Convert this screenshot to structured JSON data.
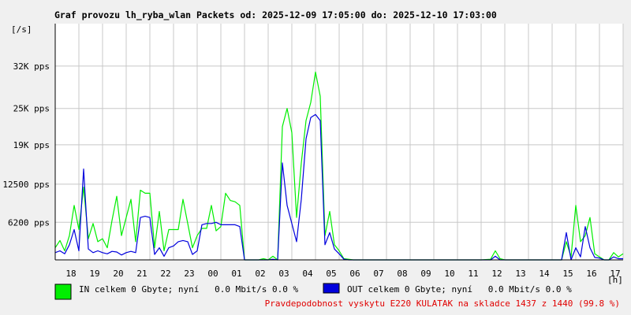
{
  "chart_data": {
    "type": "line",
    "title": "Graf provozu lh_ryba_wlan Packets od: 2025-12-09 17:05:00 do: 2025-12-10 17:03:00",
    "ylabel": "[/s]",
    "xlabel": "[h]",
    "ylim": [
      0,
      39000
    ],
    "grid": true,
    "y_ticks": [
      {
        "value": 6200,
        "label": "6200 pps"
      },
      {
        "value": 12500,
        "label": "12500 pps"
      },
      {
        "value": 19000,
        "label": "19K pps"
      },
      {
        "value": 25000,
        "label": "25K pps"
      },
      {
        "value": 32000,
        "label": "32K pps"
      }
    ],
    "x_ticks": [
      {
        "hours": 1.0,
        "label": "18"
      },
      {
        "hours": 2.0,
        "label": "19"
      },
      {
        "hours": 3.0,
        "label": "20"
      },
      {
        "hours": 4.0,
        "label": "21"
      },
      {
        "hours": 5.0,
        "label": "22"
      },
      {
        "hours": 6.0,
        "label": "23"
      },
      {
        "hours": 7.0,
        "label": "00"
      },
      {
        "hours": 8.0,
        "label": "01"
      },
      {
        "hours": 9.0,
        "label": "02"
      },
      {
        "hours": 10.0,
        "label": "03"
      },
      {
        "hours": 11.0,
        "label": "04"
      },
      {
        "hours": 12.0,
        "label": "05"
      },
      {
        "hours": 13.0,
        "label": "06"
      },
      {
        "hours": 14.0,
        "label": "07"
      },
      {
        "hours": 15.0,
        "label": "08"
      },
      {
        "hours": 16.0,
        "label": "09"
      },
      {
        "hours": 17.0,
        "label": "10"
      },
      {
        "hours": 18.0,
        "label": "11"
      },
      {
        "hours": 19.0,
        "label": "12"
      },
      {
        "hours": 20.0,
        "label": "13"
      },
      {
        "hours": 21.0,
        "label": "14"
      },
      {
        "hours": 22.0,
        "label": "15"
      },
      {
        "hours": 23.0,
        "label": "16"
      },
      {
        "hours": 24.0,
        "label": "17"
      }
    ],
    "series": [
      {
        "name": "IN",
        "color": "#00ee00",
        "x": [
          0,
          0.2,
          0.4,
          0.6,
          0.8,
          1.0,
          1.2,
          1.4,
          1.6,
          1.8,
          2.0,
          2.2,
          2.4,
          2.6,
          2.8,
          3.0,
          3.2,
          3.4,
          3.6,
          3.8,
          4.0,
          4.2,
          4.4,
          4.6,
          4.8,
          5.0,
          5.2,
          5.4,
          5.6,
          5.8,
          6.0,
          6.2,
          6.4,
          6.6,
          6.8,
          7.0,
          7.2,
          7.4,
          7.6,
          7.8,
          8.0,
          8.2,
          8.4,
          8.6,
          8.8,
          9.0,
          9.2,
          9.4,
          9.6,
          9.8,
          10.0,
          10.2,
          10.4,
          10.6,
          10.8,
          11.0,
          11.2,
          11.4,
          11.6,
          11.8,
          12.0,
          12.2,
          12.4,
          12.6,
          12.8,
          13.0,
          14.0,
          15.0,
          16.0,
          17.0,
          18.0,
          18.4,
          18.6,
          18.8,
          19.0,
          20.0,
          21.0,
          21.4,
          21.6,
          21.8,
          22.0,
          22.2,
          22.4,
          22.6,
          22.8,
          23.0,
          23.2,
          23.4,
          23.6,
          23.8,
          24.0
        ],
        "values": [
          2000,
          3200,
          1500,
          4000,
          9000,
          5000,
          12000,
          3500,
          6000,
          3000,
          3500,
          2000,
          6500,
          10500,
          4000,
          7000,
          10000,
          3000,
          11500,
          11000,
          11000,
          2000,
          8000,
          1500,
          5000,
          5000,
          5000,
          10000,
          6000,
          2000,
          4000,
          5200,
          5200,
          9000,
          4800,
          5500,
          11000,
          9800,
          9600,
          9000,
          0,
          0,
          0,
          0,
          200,
          0,
          600,
          0,
          22000,
          25000,
          21000,
          7000,
          16000,
          23000,
          26000,
          31000,
          27000,
          4000,
          8000,
          2500,
          1500,
          200,
          100,
          0,
          0,
          0,
          0,
          0,
          0,
          0,
          0,
          100,
          1500,
          200,
          0,
          0,
          0,
          0,
          3000,
          500,
          9000,
          3000,
          4000,
          7000,
          1000,
          500,
          0,
          0,
          1200,
          500,
          1000
        ]
      },
      {
        "name": "OUT",
        "color": "#0000dd",
        "x": [
          0,
          0.2,
          0.4,
          0.6,
          0.8,
          1.0,
          1.2,
          1.4,
          1.6,
          1.8,
          2.0,
          2.2,
          2.4,
          2.6,
          2.8,
          3.0,
          3.2,
          3.4,
          3.6,
          3.8,
          4.0,
          4.2,
          4.4,
          4.6,
          4.8,
          5.0,
          5.2,
          5.4,
          5.6,
          5.8,
          6.0,
          6.2,
          6.4,
          6.6,
          6.8,
          7.0,
          7.2,
          7.4,
          7.6,
          7.8,
          8.0,
          8.2,
          8.4,
          8.6,
          8.8,
          9.0,
          9.2,
          9.4,
          9.6,
          9.8,
          10.0,
          10.2,
          10.4,
          10.6,
          10.8,
          11.0,
          11.2,
          11.4,
          11.6,
          11.8,
          12.0,
          12.2,
          12.4,
          12.6,
          12.8,
          13.0,
          14.0,
          15.0,
          16.0,
          17.0,
          18.0,
          18.4,
          18.6,
          18.8,
          19.0,
          20.0,
          21.0,
          21.4,
          21.6,
          21.8,
          22.0,
          22.2,
          22.4,
          22.6,
          22.8,
          23.0,
          23.2,
          23.4,
          23.6,
          23.8,
          24.0
        ],
        "values": [
          1200,
          1500,
          1000,
          2500,
          5000,
          1500,
          15000,
          1800,
          1200,
          1500,
          1200,
          1000,
          1400,
          1300,
          800,
          1200,
          1400,
          1200,
          7000,
          7200,
          7000,
          900,
          2000,
          600,
          2000,
          2300,
          3000,
          3200,
          3000,
          900,
          1500,
          5800,
          6000,
          6000,
          6200,
          5800,
          5800,
          5800,
          5800,
          5500,
          0,
          0,
          0,
          0,
          0,
          0,
          100,
          0,
          16000,
          9000,
          6000,
          3000,
          10000,
          20000,
          23500,
          24000,
          23000,
          2500,
          4500,
          1800,
          1000,
          100,
          0,
          0,
          0,
          0,
          0,
          0,
          0,
          0,
          0,
          0,
          600,
          0,
          0,
          0,
          0,
          0,
          4500,
          0,
          2000,
          500,
          5500,
          2000,
          400,
          300,
          0,
          0,
          500,
          200,
          200
        ]
      }
    ]
  },
  "legend": {
    "in": {
      "label": "IN celkem 0 Gbyte; nyní   0.0 Mbit/s 0.0 %",
      "color": "#00ee00"
    },
    "out": {
      "label": "OUT celkem 0 Gbyte; nyní   0.0 Mbit/s 0.0 %",
      "color": "#0000dd"
    }
  },
  "footer": {
    "note": "Pravdepodobnost vyskytu E220 KULATAK na skladce 1437 z 1440 (99.8 %)",
    "color": "#e00000"
  },
  "colors": {
    "background": "#f0f0f0",
    "plot": "#ffffff",
    "grid": "#c8c8c8"
  }
}
